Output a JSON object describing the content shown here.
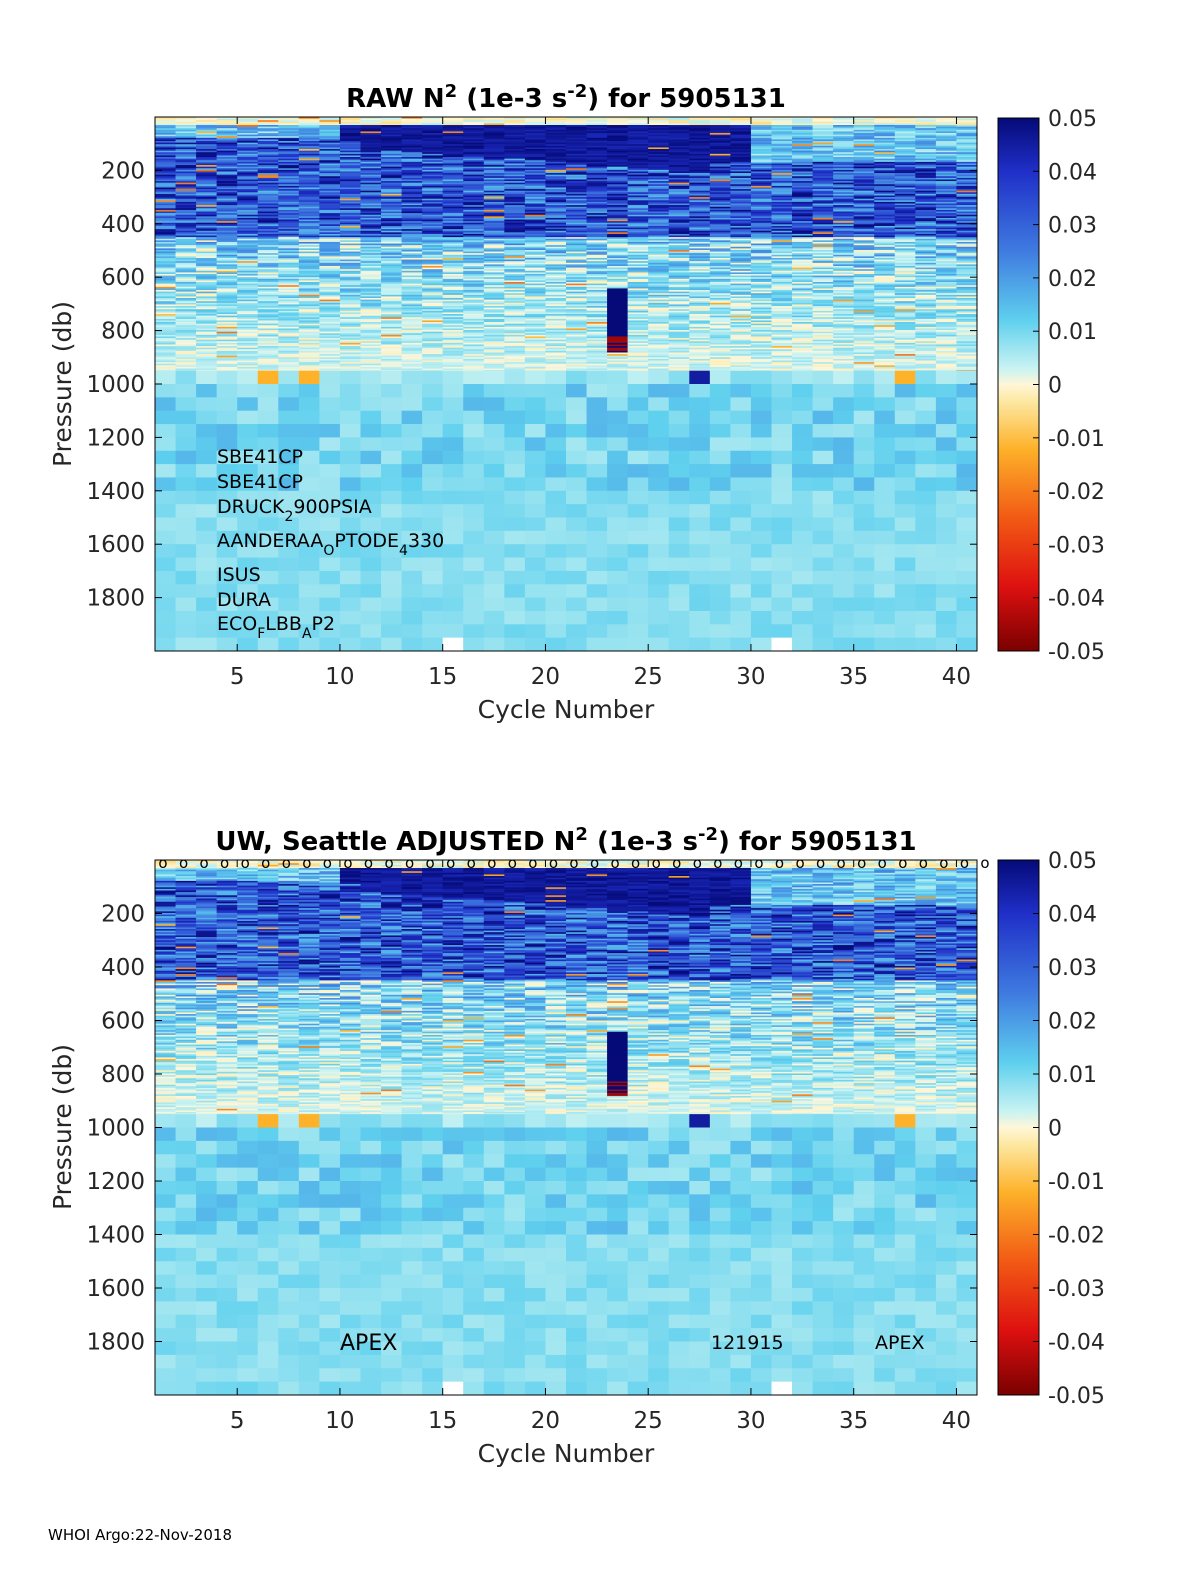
{
  "chart_data": [
    {
      "type": "heatmap",
      "title_prefix": "RAW N",
      "title_sup": "2",
      "title_units": " (1e-3 s",
      "title_units_sup": "-2",
      "title_suffix": ") for 5905131",
      "xlabel": "Cycle Number",
      "ylabel": "Pressure (db)",
      "x_ticks": [
        5,
        10,
        15,
        20,
        25,
        30,
        35,
        40
      ],
      "y_ticks": [
        200,
        400,
        600,
        800,
        1000,
        1200,
        1400,
        1600,
        1800
      ],
      "xlim": [
        1,
        41
      ],
      "ylim": [
        0,
        2000
      ],
      "y_reversed": true,
      "colorbar": {
        "ticks": [
          "0.05",
          "0.04",
          "0.03",
          "0.02",
          "0.01",
          "0",
          "-0.01",
          "-0.02",
          "-0.03",
          "-0.04",
          "-0.05"
        ],
        "range": [
          -0.05,
          0.05
        ]
      },
      "annotations": [
        {
          "text": "SBE41CP"
        },
        {
          "text": "SBE41CP"
        },
        {
          "base": "DRUCK",
          "sub": "2",
          "rest": "900PSIA"
        },
        {
          "base": "AANDERAA",
          "sub": "O",
          "rest": "PTODE",
          "sub2": "4",
          "rest2": "330"
        },
        {
          "text": "ISUS"
        },
        {
          "text": "DURA"
        },
        {
          "base": "ECO",
          "sub": "F",
          "rest": "LBB",
          "sub2": "A",
          "rest2": "P2"
        }
      ]
    },
    {
      "type": "heatmap",
      "title_prefix": "UW, Seattle  ADJUSTED N",
      "title_sup": "2",
      "title_units": " (1e-3 s",
      "title_units_sup": "-2",
      "title_suffix": ") for 5905131",
      "xlabel": "Cycle Number",
      "ylabel": "Pressure (db)",
      "x_ticks": [
        5,
        10,
        15,
        20,
        25,
        30,
        35,
        40
      ],
      "y_ticks": [
        200,
        400,
        600,
        800,
        1000,
        1200,
        1400,
        1600,
        1800
      ],
      "xlim": [
        1,
        41
      ],
      "ylim": [
        0,
        2000
      ],
      "y_reversed": true,
      "colorbar": {
        "ticks": [
          "0.05",
          "0.04",
          "0.03",
          "0.02",
          "0.01",
          "0",
          "-0.01",
          "-0.02",
          "-0.03",
          "-0.04",
          "-0.05"
        ],
        "range": [
          -0.05,
          0.05
        ]
      },
      "top_markers": "o",
      "annotations": [
        {
          "text": "APEX"
        },
        {
          "text": "121915"
        },
        {
          "text": "APEX"
        }
      ]
    }
  ],
  "footer": "WHOI Argo:22-Nov-2018"
}
